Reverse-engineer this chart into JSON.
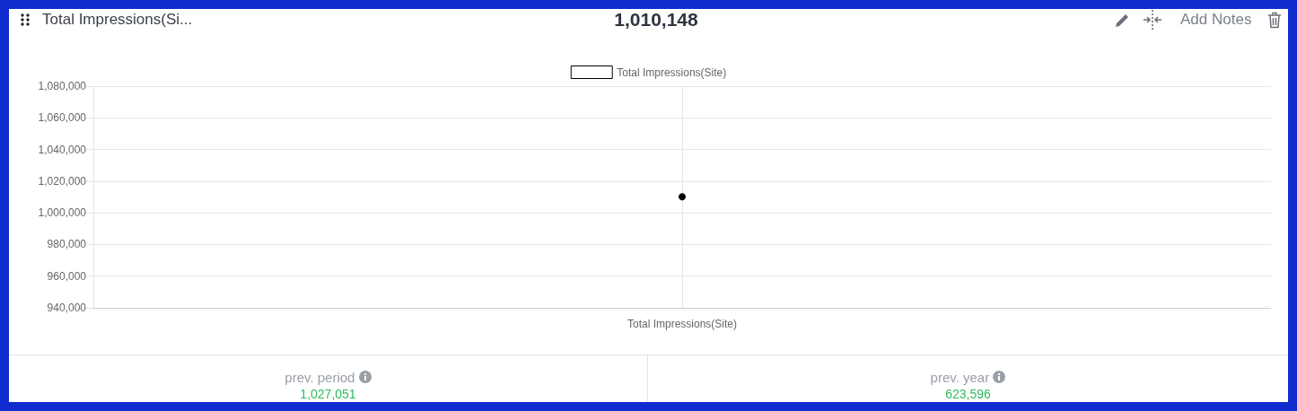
{
  "chart_data": {
    "type": "line",
    "title": "Total Impressions(Si...",
    "subtitle": "1,010,148",
    "categories": [
      "Total Impressions(Site)"
    ],
    "series": [
      {
        "name": "Total Impressions(Site)",
        "color": "#000000",
        "values": [
          1010148
        ]
      }
    ],
    "ylim": [
      940000,
      1080000
    ],
    "yticks": [
      {
        "value": 940000,
        "label": "940,000"
      },
      {
        "value": 960000,
        "label": "960,000"
      },
      {
        "value": 980000,
        "label": "980,000"
      },
      {
        "value": 1000000,
        "label": "1,000,000"
      },
      {
        "value": 1020000,
        "label": "1,020,000"
      },
      {
        "value": 1040000,
        "label": "1,040,000"
      },
      {
        "value": 1060000,
        "label": "1,060,000"
      },
      {
        "value": 1080000,
        "label": "1,080,000"
      }
    ],
    "grid": true,
    "legend": "top",
    "marker": "circle",
    "annotations": [
      "Add Notes",
      "prev. period",
      "1,027,051",
      "prev. year",
      "623,596"
    ]
  }
}
